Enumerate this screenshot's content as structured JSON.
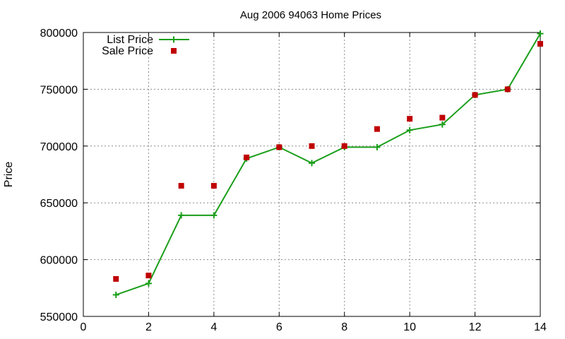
{
  "chart_data": {
    "type": "line",
    "title": "Aug 2006 94063 Home Prices",
    "xlabel": "",
    "ylabel": "Price",
    "xlim": [
      0,
      14
    ],
    "ylim": [
      550000,
      800000
    ],
    "xticks": [
      0,
      2,
      4,
      6,
      8,
      10,
      12,
      14
    ],
    "yticks": [
      550000,
      600000,
      650000,
      700000,
      750000,
      800000
    ],
    "grid": true,
    "legend_position": "top-left",
    "series": [
      {
        "name": "List Price",
        "style": "linespoints",
        "marker": "plus",
        "color": "#1a9e1a",
        "x": [
          1,
          2,
          3,
          4,
          5,
          6,
          7,
          8,
          9,
          10,
          11,
          12,
          13,
          14
        ],
        "y": [
          569000,
          579000,
          639000,
          639000,
          689000,
          699000,
          685000,
          699000,
          699000,
          714000,
          719000,
          745000,
          750000,
          799000
        ]
      },
      {
        "name": "Sale Price",
        "style": "points",
        "marker": "square",
        "color": "#c00000",
        "x": [
          1,
          2,
          3,
          4,
          5,
          6,
          7,
          8,
          9,
          10,
          11,
          12,
          13,
          14
        ],
        "y": [
          583000,
          586000,
          665000,
          665000,
          690000,
          699000,
          700000,
          700000,
          715000,
          724000,
          725000,
          745000,
          750000,
          790000
        ]
      }
    ]
  }
}
